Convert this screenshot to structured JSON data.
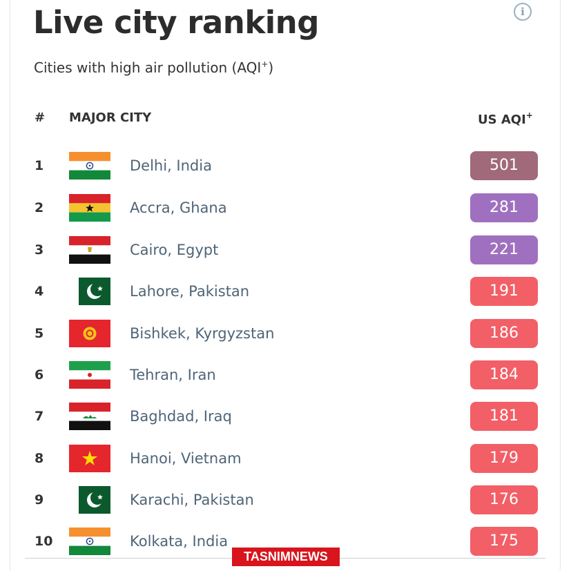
{
  "header": {
    "title": "Live city ranking",
    "subtitle_text": "Cities with high air pollution (AQI",
    "subtitle_sup": "+",
    "subtitle_close": ")"
  },
  "columns": {
    "rank": "#",
    "city": "MAJOR CITY",
    "aqi": "US AQI",
    "aqi_sup": "+"
  },
  "rows": [
    {
      "rank": "1",
      "city": "Delhi, India",
      "aqi": "501",
      "flag": "india-flag-icon",
      "color": "#a06a7a"
    },
    {
      "rank": "2",
      "city": "Accra, Ghana",
      "aqi": "281",
      "flag": "ghana-flag-icon",
      "color": "#a070c0"
    },
    {
      "rank": "3",
      "city": "Cairo, Egypt",
      "aqi": "221",
      "flag": "egypt-flag-icon",
      "color": "#a070c0"
    },
    {
      "rank": "4",
      "city": "Lahore, Pakistan",
      "aqi": "191",
      "flag": "pakistan-flag-icon",
      "color": "#f25f66"
    },
    {
      "rank": "5",
      "city": "Bishkek, Kyrgyzstan",
      "aqi": "186",
      "flag": "kyrgyzstan-flag-icon",
      "color": "#f25f66"
    },
    {
      "rank": "6",
      "city": "Tehran, Iran",
      "aqi": "184",
      "flag": "iran-flag-icon",
      "color": "#f25f66"
    },
    {
      "rank": "7",
      "city": "Baghdad, Iraq",
      "aqi": "181",
      "flag": "iraq-flag-icon",
      "color": "#f25f66"
    },
    {
      "rank": "8",
      "city": "Hanoi, Vietnam",
      "aqi": "179",
      "flag": "vietnam-flag-icon",
      "color": "#f25f66"
    },
    {
      "rank": "9",
      "city": "Karachi, Pakistan",
      "aqi": "176",
      "flag": "pakistan-flag-icon",
      "color": "#f25f66"
    },
    {
      "rank": "10",
      "city": "Kolkata, India",
      "aqi": "175",
      "flag": "india-flag-icon",
      "color": "#f25f66"
    }
  ],
  "watermark": "TASNIMNEWS"
}
